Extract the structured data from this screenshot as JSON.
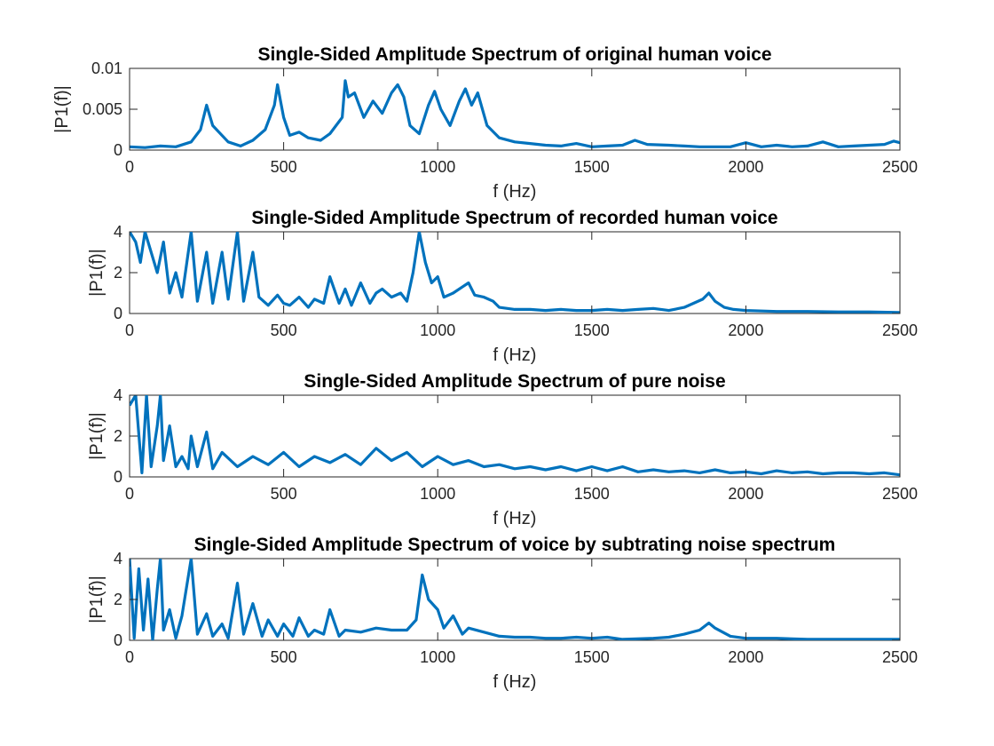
{
  "chart_data": [
    {
      "type": "line",
      "title": "Single-Sided Amplitude Spectrum of original human voice",
      "xlabel": "f (Hz)",
      "ylabel": "|P1(f)|",
      "xlim": [
        0,
        2500
      ],
      "ylim": [
        0,
        0.01
      ],
      "xticks": [
        "0",
        "500",
        "1000",
        "1500",
        "2000",
        "2500"
      ],
      "yticks": [
        "0",
        "0.005",
        "0.01"
      ],
      "color": "#0072BD",
      "grid": false,
      "x": [
        0,
        50,
        100,
        150,
        200,
        230,
        250,
        270,
        290,
        320,
        360,
        400,
        440,
        470,
        480,
        490,
        500,
        520,
        550,
        580,
        620,
        650,
        690,
        700,
        710,
        730,
        760,
        790,
        820,
        850,
        870,
        890,
        910,
        940,
        970,
        990,
        1010,
        1040,
        1070,
        1090,
        1110,
        1130,
        1160,
        1200,
        1250,
        1300,
        1350,
        1400,
        1450,
        1500,
        1550,
        1600,
        1640,
        1680,
        1750,
        1800,
        1850,
        1900,
        1950,
        2000,
        2050,
        2100,
        2150,
        2200,
        2250,
        2300,
        2350,
        2400,
        2450,
        2480,
        2500
      ],
      "y": [
        0.0004,
        0.0003,
        0.0005,
        0.0004,
        0.001,
        0.0025,
        0.0055,
        0.003,
        0.0022,
        0.001,
        0.0005,
        0.0012,
        0.0025,
        0.0055,
        0.008,
        0.006,
        0.004,
        0.0018,
        0.0022,
        0.0015,
        0.0012,
        0.002,
        0.004,
        0.0085,
        0.0065,
        0.007,
        0.004,
        0.006,
        0.0045,
        0.007,
        0.008,
        0.0065,
        0.003,
        0.002,
        0.0055,
        0.0072,
        0.005,
        0.003,
        0.006,
        0.0075,
        0.0055,
        0.007,
        0.003,
        0.0015,
        0.001,
        0.0008,
        0.0006,
        0.0005,
        0.0008,
        0.0004,
        0.0005,
        0.0006,
        0.0012,
        0.0007,
        0.0006,
        0.0005,
        0.0004,
        0.0004,
        0.0004,
        0.0009,
        0.0004,
        0.0006,
        0.0004,
        0.0005,
        0.001,
        0.0004,
        0.0005,
        0.0006,
        0.0007,
        0.0011,
        0.0009
      ]
    },
    {
      "type": "line",
      "title": "Single-Sided Amplitude Spectrum of recorded human voice",
      "xlabel": "f (Hz)",
      "ylabel": "|P1(f)|",
      "xlim": [
        0,
        2500
      ],
      "ylim": [
        0,
        4
      ],
      "xticks": [
        "0",
        "500",
        "1000",
        "1500",
        "2000",
        "2500"
      ],
      "yticks": [
        "0",
        "2",
        "4"
      ],
      "color": "#0072BD",
      "grid": false,
      "x": [
        0,
        20,
        35,
        50,
        70,
        90,
        110,
        130,
        150,
        170,
        200,
        220,
        250,
        270,
        300,
        320,
        350,
        370,
        400,
        420,
        450,
        480,
        500,
        520,
        550,
        580,
        600,
        630,
        650,
        680,
        700,
        720,
        750,
        780,
        800,
        820,
        850,
        880,
        900,
        920,
        940,
        960,
        980,
        1000,
        1020,
        1050,
        1080,
        1100,
        1120,
        1150,
        1180,
        1200,
        1250,
        1300,
        1350,
        1400,
        1450,
        1500,
        1550,
        1600,
        1650,
        1700,
        1750,
        1800,
        1830,
        1860,
        1880,
        1900,
        1930,
        1960,
        2000,
        2100,
        2200,
        2300,
        2400,
        2500
      ],
      "y": [
        4.0,
        3.5,
        2.5,
        4.0,
        3.0,
        2.0,
        3.5,
        1.0,
        2.0,
        0.8,
        4.0,
        0.6,
        3.0,
        0.5,
        3.0,
        0.7,
        4.0,
        0.6,
        3.0,
        0.8,
        0.4,
        0.9,
        0.5,
        0.4,
        0.8,
        0.3,
        0.7,
        0.5,
        1.8,
        0.5,
        1.2,
        0.4,
        1.5,
        0.5,
        1.0,
        1.2,
        0.8,
        1.0,
        0.6,
        2.0,
        4.0,
        2.5,
        1.5,
        1.8,
        0.8,
        1.0,
        1.3,
        1.5,
        0.9,
        0.8,
        0.6,
        0.3,
        0.2,
        0.2,
        0.15,
        0.2,
        0.15,
        0.15,
        0.2,
        0.15,
        0.2,
        0.25,
        0.15,
        0.3,
        0.5,
        0.7,
        1.0,
        0.6,
        0.3,
        0.2,
        0.15,
        0.1,
        0.1,
        0.08,
        0.08,
        0.05
      ]
    },
    {
      "type": "line",
      "title": "Single-Sided Amplitude Spectrum of pure noise",
      "xlabel": "f (Hz)",
      "ylabel": "|P1(f)|",
      "xlim": [
        0,
        2500
      ],
      "ylim": [
        0,
        4
      ],
      "xticks": [
        "0",
        "500",
        "1000",
        "1500",
        "2000",
        "2500"
      ],
      "yticks": [
        "0",
        "2",
        "4"
      ],
      "color": "#0072BD",
      "grid": false,
      "x": [
        0,
        20,
        40,
        55,
        70,
        90,
        100,
        110,
        130,
        150,
        170,
        190,
        200,
        220,
        250,
        270,
        300,
        350,
        400,
        450,
        500,
        550,
        600,
        650,
        700,
        750,
        800,
        850,
        900,
        950,
        1000,
        1050,
        1100,
        1150,
        1200,
        1250,
        1300,
        1350,
        1400,
        1450,
        1500,
        1550,
        1600,
        1650,
        1700,
        1750,
        1800,
        1850,
        1900,
        1950,
        2000,
        2050,
        2100,
        2150,
        2200,
        2250,
        2300,
        2350,
        2400,
        2450,
        2500
      ],
      "y": [
        3.5,
        4.0,
        0.2,
        4.0,
        0.5,
        2.5,
        4.0,
        0.8,
        2.5,
        0.5,
        1.0,
        0.4,
        2.0,
        0.5,
        2.2,
        0.4,
        1.2,
        0.5,
        1.0,
        0.6,
        1.2,
        0.5,
        1.0,
        0.7,
        1.1,
        0.6,
        1.4,
        0.8,
        1.2,
        0.5,
        1.0,
        0.6,
        0.8,
        0.5,
        0.6,
        0.4,
        0.5,
        0.35,
        0.5,
        0.3,
        0.5,
        0.3,
        0.5,
        0.25,
        0.35,
        0.25,
        0.3,
        0.2,
        0.35,
        0.2,
        0.25,
        0.15,
        0.3,
        0.2,
        0.25,
        0.15,
        0.2,
        0.2,
        0.15,
        0.2,
        0.1
      ]
    },
    {
      "type": "line",
      "title": "Single-Sided Amplitude Spectrum of voice by subtrating noise spectrum",
      "xlabel": "f (Hz)",
      "ylabel": "|P1(f)|",
      "xlim": [
        0,
        2500
      ],
      "ylim": [
        0,
        4
      ],
      "xticks": [
        "0",
        "500",
        "1000",
        "1500",
        "2000",
        "2500"
      ],
      "yticks": [
        "0",
        "2",
        "4"
      ],
      "color": "#0072BD",
      "grid": false,
      "x": [
        0,
        15,
        30,
        45,
        60,
        75,
        90,
        100,
        110,
        130,
        150,
        170,
        200,
        220,
        250,
        270,
        300,
        320,
        350,
        370,
        400,
        430,
        450,
        480,
        500,
        530,
        550,
        580,
        600,
        630,
        650,
        680,
        700,
        750,
        800,
        850,
        900,
        930,
        950,
        970,
        1000,
        1020,
        1050,
        1080,
        1100,
        1150,
        1200,
        1250,
        1300,
        1350,
        1400,
        1450,
        1500,
        1550,
        1600,
        1700,
        1750,
        1800,
        1850,
        1880,
        1900,
        1950,
        2000,
        2100,
        2200,
        2300,
        2400,
        2500
      ],
      "y": [
        4.0,
        0.1,
        3.5,
        0.5,
        3.0,
        0.0,
        2.5,
        4.0,
        0.5,
        1.5,
        0.1,
        1.2,
        4.0,
        0.3,
        1.3,
        0.2,
        0.8,
        0.1,
        2.8,
        0.3,
        1.8,
        0.2,
        1.0,
        0.2,
        0.8,
        0.2,
        1.1,
        0.2,
        0.5,
        0.3,
        1.5,
        0.2,
        0.5,
        0.4,
        0.6,
        0.5,
        0.5,
        1.0,
        3.2,
        2.0,
        1.5,
        0.6,
        1.2,
        0.3,
        0.6,
        0.4,
        0.2,
        0.15,
        0.15,
        0.1,
        0.1,
        0.15,
        0.1,
        0.15,
        0.05,
        0.1,
        0.15,
        0.3,
        0.5,
        0.85,
        0.6,
        0.2,
        0.1,
        0.1,
        0.05,
        0.05,
        0.05,
        0.05
      ]
    }
  ]
}
